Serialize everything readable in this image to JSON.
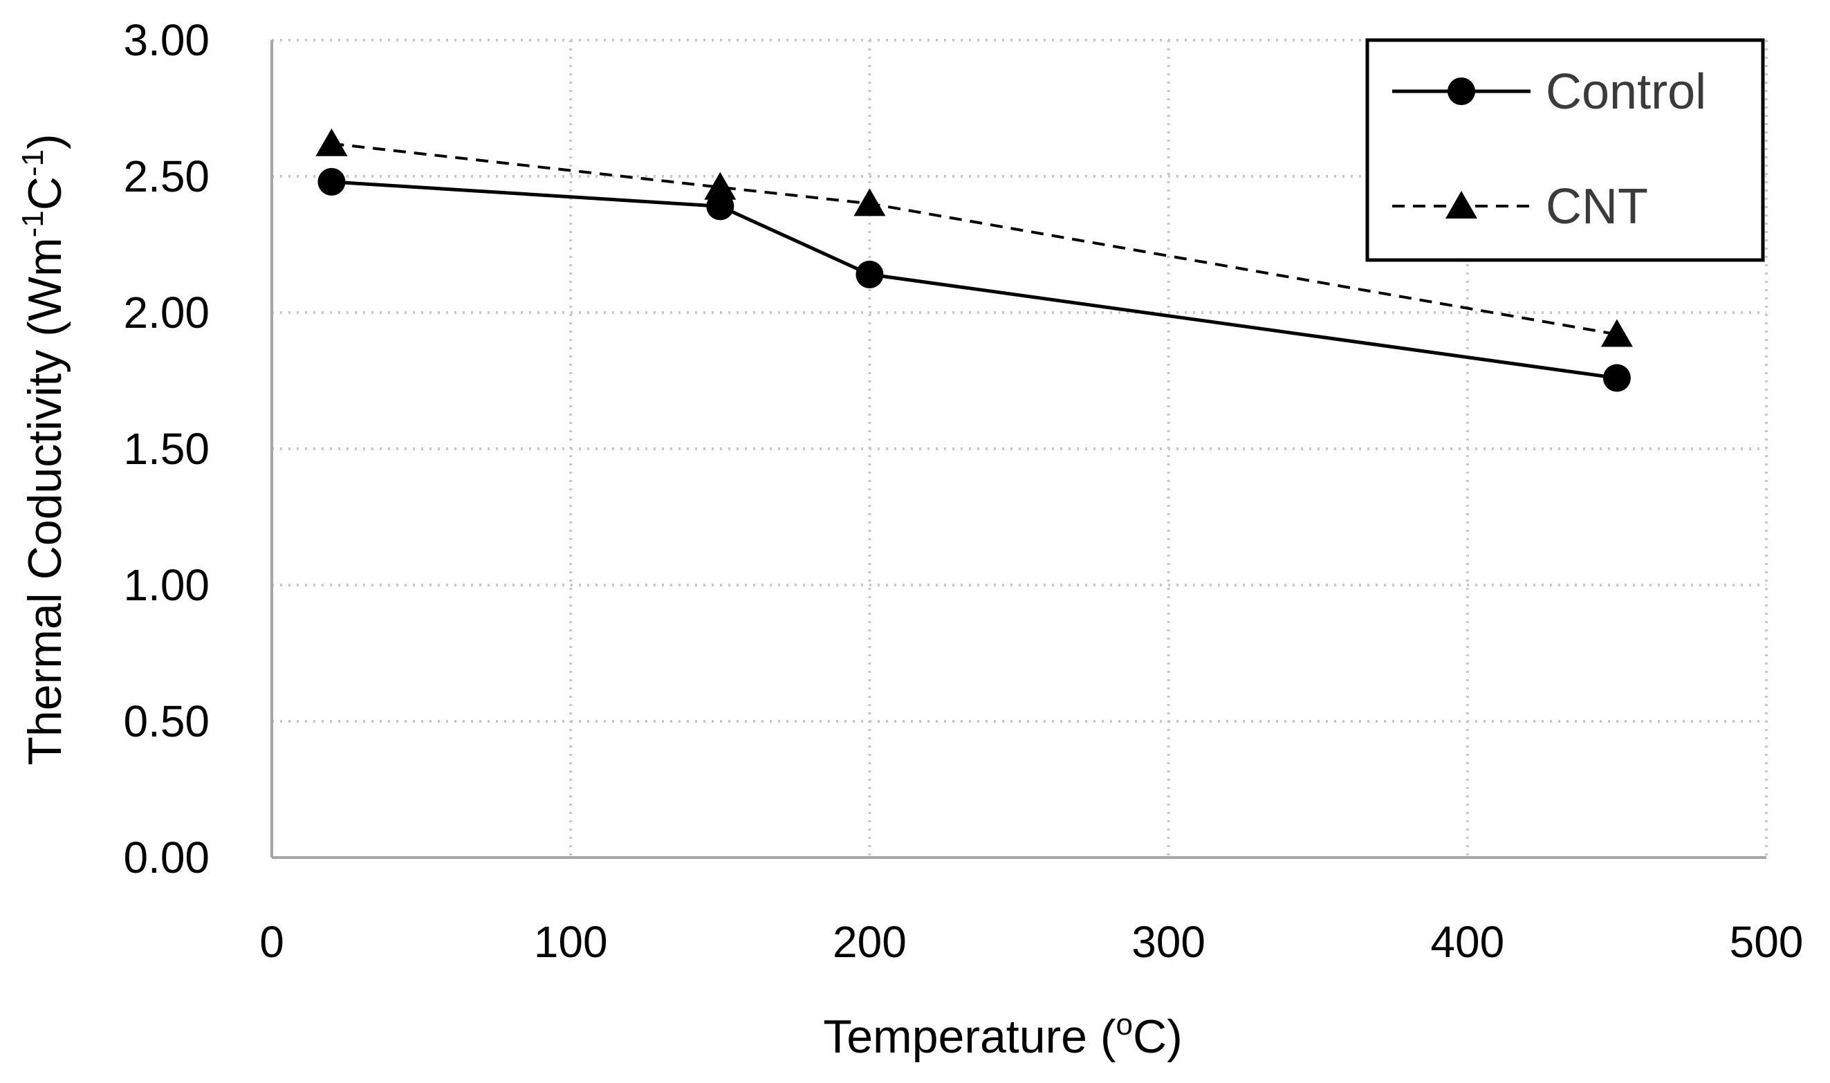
{
  "chart_data": {
    "type": "line",
    "title": "",
    "xlabel": "Temperature (",
    "xlabel_sup": "o",
    "xlabel_end": "C)",
    "ylabel": "Thermal Coductivity (Wm",
    "ylabel_sup1": "-1",
    "ylabel_mid": "C",
    "ylabel_sup2": "-1",
    "ylabel_end": ")",
    "xlim": [
      0,
      500
    ],
    "ylim": [
      0,
      3
    ],
    "x_ticks": [
      0,
      100,
      200,
      300,
      400,
      500
    ],
    "x_tick_labels": [
      "0",
      "100",
      "200",
      "300",
      "400",
      "500"
    ],
    "y_ticks": [
      0,
      0.5,
      1.0,
      1.5,
      2.0,
      2.5,
      3.0
    ],
    "y_tick_labels": [
      "0.00",
      "0.50",
      "1.00",
      "1.50",
      "2.00",
      "2.50",
      "3.00"
    ],
    "grid": true,
    "legend_position": "top-right",
    "series": [
      {
        "name": "Control",
        "marker": "circle",
        "line_style": "solid",
        "color": "#000000",
        "x": [
          20,
          150,
          200,
          450
        ],
        "y": [
          2.48,
          2.39,
          2.14,
          1.76
        ]
      },
      {
        "name": "CNT",
        "marker": "triangle",
        "line_style": "dashed",
        "color": "#000000",
        "x": [
          20,
          150,
          200,
          450
        ],
        "y": [
          2.62,
          2.46,
          2.4,
          1.92
        ]
      }
    ]
  }
}
